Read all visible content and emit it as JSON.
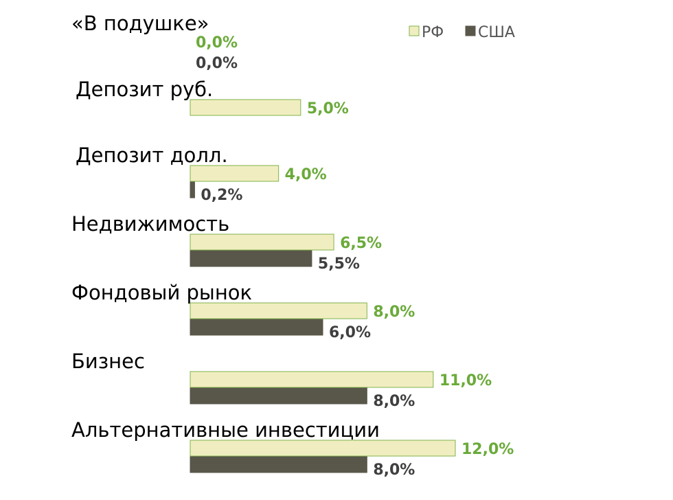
{
  "chart_data": {
    "type": "bar",
    "orientation": "horizontal",
    "categories": [
      "«В подушке»",
      "Депозит руб.",
      "Депозит долл.",
      "Недвижимость",
      "Фондовый рынок",
      "Бизнес",
      "Альтернативные инвестиции"
    ],
    "series": [
      {
        "name": "РФ",
        "values": [
          0.0,
          5.0,
          4.0,
          6.5,
          8.0,
          11.0,
          12.0
        ],
        "labels": [
          "0,0%",
          "5,0%",
          "4,0%",
          "6,5%",
          "8,0%",
          "11,0%",
          "12,0%"
        ],
        "fill": "#f0eec0",
        "stroke": "#7fb24a",
        "label_color": "#6aaa3a"
      },
      {
        "name": "США",
        "values": [
          0.0,
          null,
          0.2,
          5.5,
          6.0,
          8.0,
          8.0
        ],
        "labels": [
          "0,0%",
          "",
          "0,2%",
          "5,5%",
          "6,0%",
          "8,0%",
          "8,0%"
        ],
        "fill": "#59574a",
        "stroke": "#59574a",
        "label_color": "#3f3f3f"
      }
    ],
    "xlim": [
      0,
      12
    ],
    "grid": false,
    "legend_position": "top-right"
  }
}
